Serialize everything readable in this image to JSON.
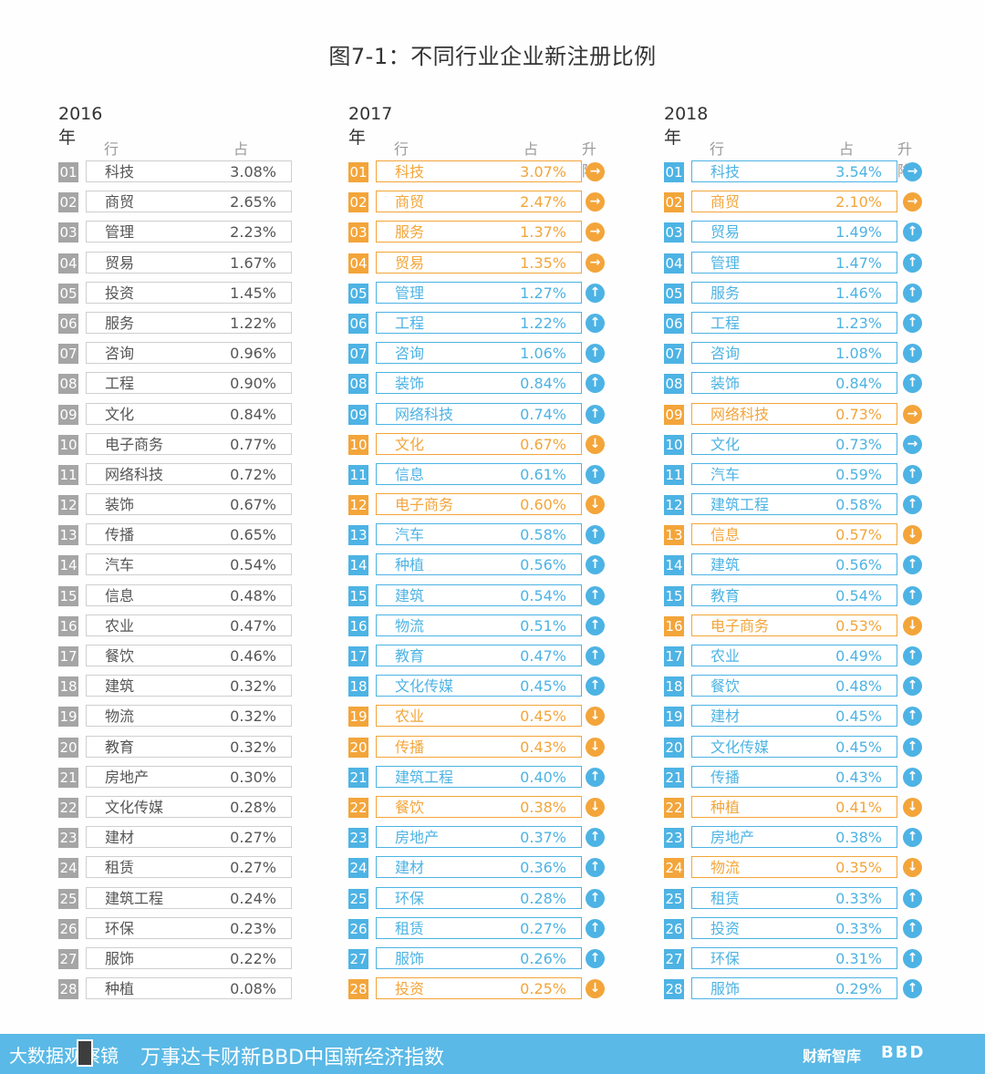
{
  "title": "图7-1：不同行业企业新注册比例",
  "colors": {
    "gray": "#a5a5a5",
    "blue": "#4db3e4",
    "orange": "#f3a53a"
  },
  "headers": {
    "industry": "行业",
    "share": "占比",
    "trend": "升降"
  },
  "chart_data": {
    "type": "table",
    "panels": [
      {
        "year": "2016年",
        "rows": [
          {
            "rank": "01",
            "name": "科技",
            "value": "3.08%"
          },
          {
            "rank": "02",
            "name": "商贸",
            "value": "2.65%"
          },
          {
            "rank": "03",
            "name": "管理",
            "value": "2.23%"
          },
          {
            "rank": "04",
            "name": "贸易",
            "value": "1.67%"
          },
          {
            "rank": "05",
            "name": "投资",
            "value": "1.45%"
          },
          {
            "rank": "06",
            "name": "服务",
            "value": "1.22%"
          },
          {
            "rank": "07",
            "name": "咨询",
            "value": "0.96%"
          },
          {
            "rank": "08",
            "name": "工程",
            "value": "0.90%"
          },
          {
            "rank": "09",
            "name": "文化",
            "value": "0.84%"
          },
          {
            "rank": "10",
            "name": "电子商务",
            "value": "0.77%"
          },
          {
            "rank": "11",
            "name": "网络科技",
            "value": "0.72%"
          },
          {
            "rank": "12",
            "name": "装饰",
            "value": "0.67%"
          },
          {
            "rank": "13",
            "name": "传播",
            "value": "0.65%"
          },
          {
            "rank": "14",
            "name": "汽车",
            "value": "0.54%"
          },
          {
            "rank": "15",
            "name": "信息",
            "value": "0.48%"
          },
          {
            "rank": "16",
            "name": "农业",
            "value": "0.47%"
          },
          {
            "rank": "17",
            "name": "餐饮",
            "value": "0.46%"
          },
          {
            "rank": "18",
            "name": "建筑",
            "value": "0.32%"
          },
          {
            "rank": "19",
            "name": "物流",
            "value": "0.32%"
          },
          {
            "rank": "20",
            "name": "教育",
            "value": "0.32%"
          },
          {
            "rank": "21",
            "name": "房地产",
            "value": "0.30%"
          },
          {
            "rank": "22",
            "name": "文化传媒",
            "value": "0.28%"
          },
          {
            "rank": "23",
            "name": "建材",
            "value": "0.27%"
          },
          {
            "rank": "24",
            "name": "租赁",
            "value": "0.27%"
          },
          {
            "rank": "25",
            "name": "建筑工程",
            "value": "0.24%"
          },
          {
            "rank": "26",
            "name": "环保",
            "value": "0.23%"
          },
          {
            "rank": "27",
            "name": "服饰",
            "value": "0.22%"
          },
          {
            "rank": "28",
            "name": "种植",
            "value": "0.08%"
          }
        ]
      },
      {
        "year": "2017年",
        "rows": [
          {
            "rank": "01",
            "name": "科技",
            "value": "3.07%",
            "trend": "same"
          },
          {
            "rank": "02",
            "name": "商贸",
            "value": "2.47%",
            "trend": "same"
          },
          {
            "rank": "03",
            "name": "服务",
            "value": "1.37%",
            "trend": "same"
          },
          {
            "rank": "04",
            "name": "贸易",
            "value": "1.35%",
            "trend": "same"
          },
          {
            "rank": "05",
            "name": "管理",
            "value": "1.27%",
            "trend": "up"
          },
          {
            "rank": "06",
            "name": "工程",
            "value": "1.22%",
            "trend": "up"
          },
          {
            "rank": "07",
            "name": "咨询",
            "value": "1.06%",
            "trend": "up"
          },
          {
            "rank": "08",
            "name": "装饰",
            "value": "0.84%",
            "trend": "up"
          },
          {
            "rank": "09",
            "name": "网络科技",
            "value": "0.74%",
            "trend": "up"
          },
          {
            "rank": "10",
            "name": "文化",
            "value": "0.67%",
            "trend": "down"
          },
          {
            "rank": "11",
            "name": "信息",
            "value": "0.61%",
            "trend": "up"
          },
          {
            "rank": "12",
            "name": "电子商务",
            "value": "0.60%",
            "trend": "down"
          },
          {
            "rank": "13",
            "name": "汽车",
            "value": "0.58%",
            "trend": "up"
          },
          {
            "rank": "14",
            "name": "种植",
            "value": "0.56%",
            "trend": "up"
          },
          {
            "rank": "15",
            "name": "建筑",
            "value": "0.54%",
            "trend": "up"
          },
          {
            "rank": "16",
            "name": "物流",
            "value": "0.51%",
            "trend": "up"
          },
          {
            "rank": "17",
            "name": "教育",
            "value": "0.47%",
            "trend": "up"
          },
          {
            "rank": "18",
            "name": "文化传媒",
            "value": "0.45%",
            "trend": "up"
          },
          {
            "rank": "19",
            "name": "农业",
            "value": "0.45%",
            "trend": "down"
          },
          {
            "rank": "20",
            "name": "传播",
            "value": "0.43%",
            "trend": "down"
          },
          {
            "rank": "21",
            "name": "建筑工程",
            "value": "0.40%",
            "trend": "up"
          },
          {
            "rank": "22",
            "name": "餐饮",
            "value": "0.38%",
            "trend": "down"
          },
          {
            "rank": "23",
            "name": "房地产",
            "value": "0.37%",
            "trend": "up"
          },
          {
            "rank": "24",
            "name": "建材",
            "value": "0.36%",
            "trend": "up"
          },
          {
            "rank": "25",
            "name": "环保",
            "value": "0.28%",
            "trend": "up"
          },
          {
            "rank": "26",
            "name": "租赁",
            "value": "0.27%",
            "trend": "up"
          },
          {
            "rank": "27",
            "name": "服饰",
            "value": "0.26%",
            "trend": "up"
          },
          {
            "rank": "28",
            "name": "投资",
            "value": "0.25%",
            "trend": "down"
          }
        ]
      },
      {
        "year": "2018年",
        "rows": [
          {
            "rank": "01",
            "name": "科技",
            "value": "3.54%",
            "trend": "same"
          },
          {
            "rank": "02",
            "name": "商贸",
            "value": "2.10%",
            "trend": "same"
          },
          {
            "rank": "03",
            "name": "贸易",
            "value": "1.49%",
            "trend": "up"
          },
          {
            "rank": "04",
            "name": "管理",
            "value": "1.47%",
            "trend": "up"
          },
          {
            "rank": "05",
            "name": "服务",
            "value": "1.46%",
            "trend": "up"
          },
          {
            "rank": "06",
            "name": "工程",
            "value": "1.23%",
            "trend": "up"
          },
          {
            "rank": "07",
            "name": "咨询",
            "value": "1.08%",
            "trend": "up"
          },
          {
            "rank": "08",
            "name": "装饰",
            "value": "0.84%",
            "trend": "up"
          },
          {
            "rank": "09",
            "name": "网络科技",
            "value": "0.73%",
            "trend": "same"
          },
          {
            "rank": "10",
            "name": "文化",
            "value": "0.73%",
            "trend": "same"
          },
          {
            "rank": "11",
            "name": "汽车",
            "value": "0.59%",
            "trend": "up"
          },
          {
            "rank": "12",
            "name": "建筑工程",
            "value": "0.58%",
            "trend": "up"
          },
          {
            "rank": "13",
            "name": "信息",
            "value": "0.57%",
            "trend": "down"
          },
          {
            "rank": "14",
            "name": "建筑",
            "value": "0.56%",
            "trend": "up"
          },
          {
            "rank": "15",
            "name": "教育",
            "value": "0.54%",
            "trend": "up"
          },
          {
            "rank": "16",
            "name": "电子商务",
            "value": "0.53%",
            "trend": "down"
          },
          {
            "rank": "17",
            "name": "农业",
            "value": "0.49%",
            "trend": "up"
          },
          {
            "rank": "18",
            "name": "餐饮",
            "value": "0.48%",
            "trend": "up"
          },
          {
            "rank": "19",
            "name": "建材",
            "value": "0.45%",
            "trend": "up"
          },
          {
            "rank": "20",
            "name": "文化传媒",
            "value": "0.45%",
            "trend": "up"
          },
          {
            "rank": "21",
            "name": "传播",
            "value": "0.43%",
            "trend": "up"
          },
          {
            "rank": "22",
            "name": "种植",
            "value": "0.41%",
            "trend": "down"
          },
          {
            "rank": "23",
            "name": "房地产",
            "value": "0.38%",
            "trend": "up"
          },
          {
            "rank": "24",
            "name": "物流",
            "value": "0.35%",
            "trend": "down"
          },
          {
            "rank": "25",
            "name": "租赁",
            "value": "0.33%",
            "trend": "up"
          },
          {
            "rank": "26",
            "name": "投资",
            "value": "0.33%",
            "trend": "up"
          },
          {
            "rank": "27",
            "name": "环保",
            "value": "0.31%",
            "trend": "up"
          },
          {
            "rank": "28",
            "name": "服饰",
            "value": "0.29%",
            "trend": "up"
          }
        ]
      }
    ]
  },
  "footer": {
    "logo": "大数据观察镜",
    "main": "万事达卡财新BBD中国新经济指数",
    "brand1": "财新智库",
    "brand2": "BBD"
  }
}
